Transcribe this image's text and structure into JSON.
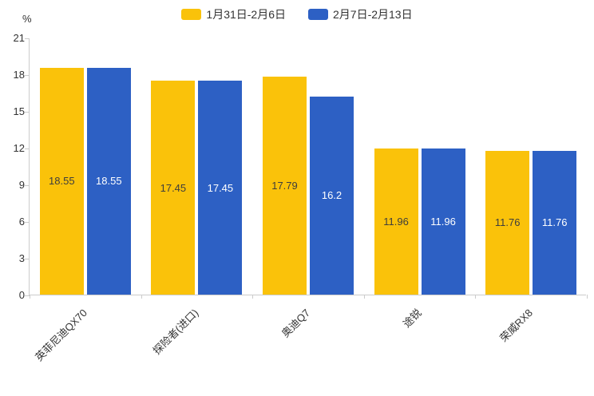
{
  "chart_data": {
    "type": "bar",
    "title": "",
    "ylabel": "%",
    "ymax": 21,
    "yticks": [
      0,
      3,
      6,
      9,
      12,
      15,
      18,
      21
    ],
    "grid": false,
    "legend_position": "top",
    "categories": [
      "英菲尼迪QX70",
      "探险者(进口)",
      "奥迪Q7",
      "途锐",
      "荣威RX8"
    ],
    "series": [
      {
        "name": "1月31日-2月6日",
        "color": "#FAC20A",
        "label_color": "#3d3d3d",
        "values": [
          18.55,
          17.45,
          17.79,
          11.96,
          11.76
        ]
      },
      {
        "name": "2月7日-2月13日",
        "color": "#2D60C4",
        "label_color": "#ffffff",
        "values": [
          18.55,
          17.45,
          16.2,
          11.96,
          11.76
        ]
      }
    ]
  }
}
